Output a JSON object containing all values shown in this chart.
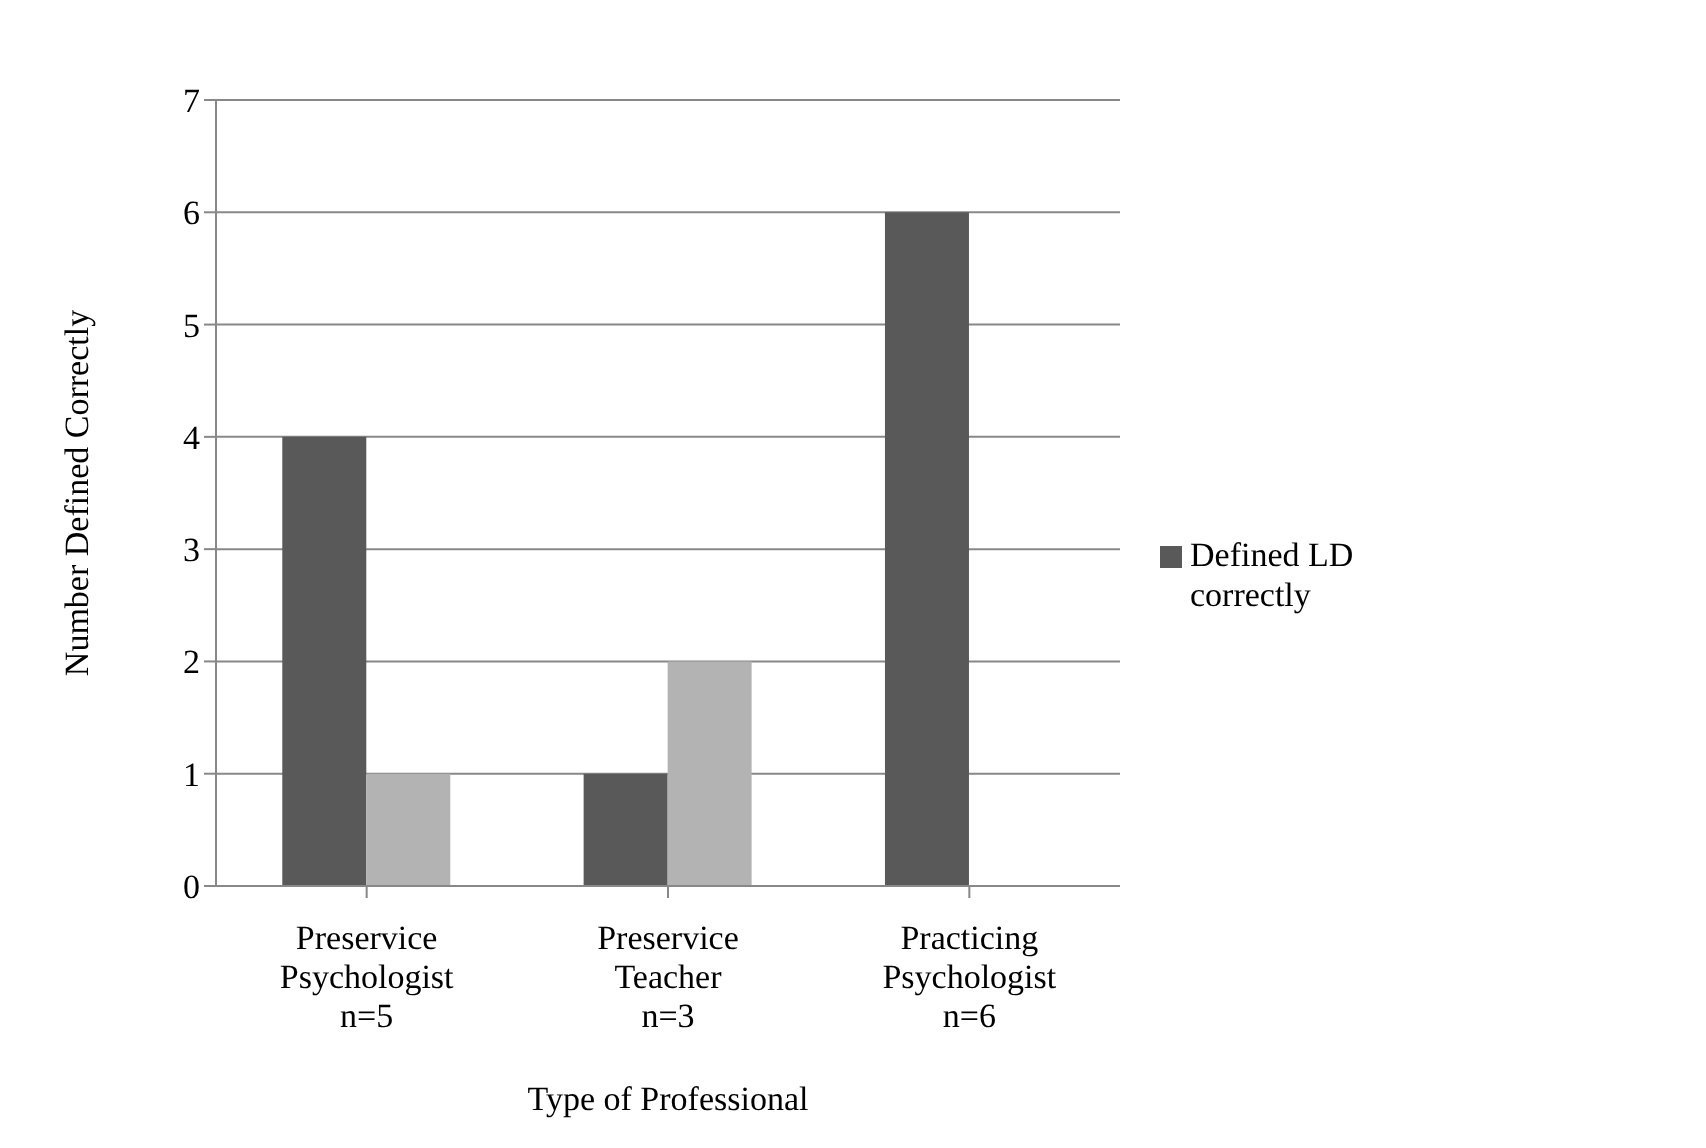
{
  "chart_data": {
    "type": "bar",
    "xlabel": "Type of Professional",
    "ylabel": "Number Defined Correctly",
    "categories": [
      "Preservice\nPsychologist\nn=5",
      "Preservice\nTeacher\nn=3",
      "Practicing\nPsychologist\nn=6"
    ],
    "series": [
      {
        "name": "Defined LD correctly",
        "color": "#595959",
        "values": [
          4,
          1,
          6
        ]
      },
      {
        "color": "#b3b3b3",
        "values": [
          1,
          2,
          null
        ]
      }
    ],
    "ylim": [
      0,
      7
    ],
    "yticks": [
      0,
      1,
      2,
      3,
      4,
      5,
      6,
      7
    ],
    "grid": "y",
    "legend": "right"
  }
}
